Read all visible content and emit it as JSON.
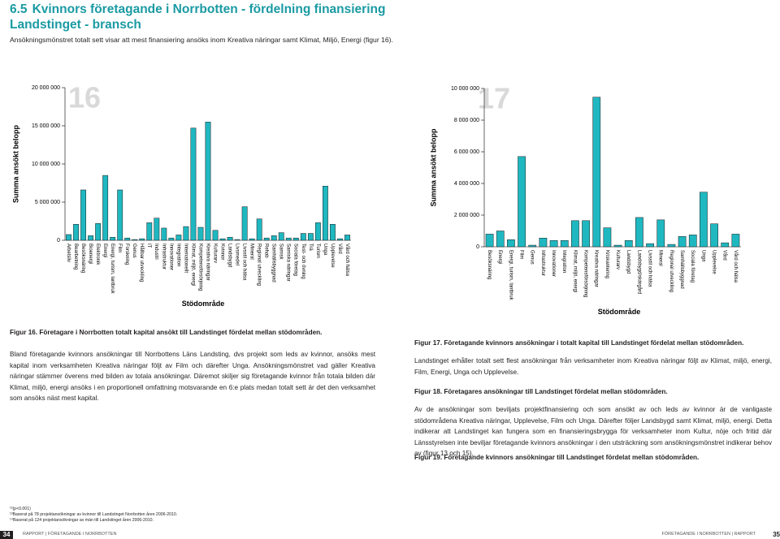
{
  "header": {
    "section": "6.5",
    "title": "Kvinnors företagande i Norrbotten - fördelning finansiering Landstinget - bransch",
    "intro": "Ansökningsmönstret totalt sett visar att mest finansiering ansöks inom Kreativa näringar samt Klimat, Miljö, Energi (figur 16)."
  },
  "chart_data": [
    {
      "type": "bar",
      "figure_number": "16",
      "ylabel": "Summa ansökt belopp",
      "xlabel": "Stödområde",
      "color": "#1fb8c1",
      "categories": [
        "Arbetsliv",
        "Bearbetning",
        "Besöksnäring",
        "Bioenergi",
        "Elektronik",
        "Energi",
        "Energi, turism, lantbruk",
        "Film",
        "Forskning",
        "Genus",
        "Hållbar utveckling",
        "IT",
        "Industri",
        "Infrastruktur",
        "Innovationer",
        "Integration",
        "Internationellt",
        "Klimat, miljö, energi",
        "Kompetensförsörjning",
        "Kreativa näringar",
        "Kulturarv",
        "Kvinnor",
        "Landsbygd",
        "Livsmedel",
        "Livsstil och hälsa",
        "Mineral",
        "Regional utveckling",
        "Rehab",
        "Samhällsbyggnad",
        "Samisk",
        "Samiska näringar",
        "Sociala företag",
        "Test- och övning",
        "Trä",
        "Turism",
        "Unga",
        "Upplevelse",
        "Vård",
        "Vård och hälsa"
      ],
      "values": [
        750000,
        2100000,
        6600000,
        600000,
        2200000,
        8500000,
        400000,
        6600000,
        300000,
        100000,
        200000,
        2300000,
        2900000,
        1600000,
        300000,
        700000,
        1800000,
        14700000,
        1700000,
        15500000,
        1300000,
        200000,
        400000,
        100000,
        4400000,
        200000,
        2800000,
        300000,
        600000,
        1000000,
        300000,
        300000,
        900000,
        900000,
        2300000,
        7100000,
        2100000,
        200000,
        700000
      ],
      "ylim": [
        0,
        20000000
      ],
      "yticks": [
        0,
        {
          "value": 5000000,
          "label": "5 000 000"
        },
        {
          "value": 10000000,
          "label": "10 000 000"
        },
        {
          "value": 15000000,
          "label": "15 000 000"
        },
        {
          "value": 20000000,
          "label": "20 000 000"
        }
      ]
    },
    {
      "type": "bar",
      "figure_number": "17",
      "ylabel": "Summa ansökt belopp",
      "xlabel": "Stödområde",
      "color": "#1fb8c1",
      "categories": [
        "Besöksnäring",
        "Energi",
        "Energi, turism, lantbruk",
        "Film",
        "Genus",
        "Infrastruktur",
        "Innovationer",
        "Integration",
        "Klimat, miljö, energi",
        "Kompetensförsörjning",
        "Kreativa näringar",
        "Kriskantering",
        "Kulturarv",
        "Landsbygd",
        "Landsbygd/skärgård",
        "Livsstil och hälsa",
        "Mineral",
        "Regional utveckling",
        "Samhällsbyggnad",
        "Sociala företag",
        "Unga",
        "Upplevelse",
        "Vård",
        "Vård och hälsa"
      ],
      "values": [
        800000,
        1000000,
        450000,
        5700000,
        100000,
        550000,
        400000,
        400000,
        1650000,
        1650000,
        9450000,
        1200000,
        100000,
        400000,
        1850000,
        200000,
        1700000,
        150000,
        650000,
        750000,
        3450000,
        1450000,
        250000,
        800000
      ],
      "ylim": [
        0,
        10000000
      ],
      "yticks": [
        0,
        {
          "value": 2000000,
          "label": "2 000 000"
        },
        {
          "value": 4000000,
          "label": "4 000 000"
        },
        {
          "value": 6000000,
          "label": "6 000 000"
        },
        {
          "value": 8000000,
          "label": "8 000 000"
        },
        {
          "value": 10000000,
          "label": "10 000 000"
        }
      ]
    }
  ],
  "left_column": {
    "caption": "Figur 16. Företagare i Norrbotten totalt kapital ansökt till Landstinget fördelat mellan stödområden.",
    "paragraph": "Bland företagande kvinnors ansökningar till Norrbottens Läns Landsting, dvs projekt som leds av kvinnor, ansöks mest kapital inom verksamheten Kreativa näringar följt av Film och därefter Unga. Ansökningsmönstret vad gäller Kreativa näringar stämmer överens med bilden av totala ansökningar. Däremot skiljer sig företagande kvinnor från totala bilden där Klimat, miljö, energi ansöks i en proportionell omfattning motsvarande en 6:e plats medan totalt sett är det den verksamhet som ansöks näst mest kapital."
  },
  "right_column": {
    "caption_17": "Figur 17. Företagande kvinnors ansökningar i totalt kapital till Landstinget fördelat mellan stödområden.",
    "paragraph_1": "Landstinget erhåller totalt sett flest ansökningar från verksamheter inom Kreativa näringar följt av Klimat, miljö, energi, Film, Energi, Unga och Upplevelse.",
    "caption_18": "Figur 18. Företagares ansökningar till Landstinget fördelat mellan stödområden.",
    "paragraph_2": "Av de ansökningar som beviljats projektfinansiering och som ansökt av och leds av kvinnor är de vanligaste stödområdena Kreativa näringar, Upplevelse, Film och Unga. Därefter följer Landsbygd samt Klimat, miljö, energi. Detta indikerar att Landstinget kan fungera som en finansieringsbrygga för verksamheter inom Kultur, nöje och fritid där Länsstyrelsen inte beviljar företagande kvinnors ansökningar i den utsträckning som ansökningsmönstret indikerar behov av (figur 13 och 15).",
    "caption_19": "Figur 19. Företagande kvinnors ansökningar till Landstinget fördelat mellan stödområden."
  },
  "footnotes": [
    "¹²(p<0.001)",
    "¹³Baserat på 78 projektansökningar av kvinnor till Landstinget Norrbotten åren 2006-2010.",
    "¹⁴Baserat på 124 projektansökningar av män till Landstinget åren 2006-2010."
  ],
  "footer": {
    "left_page": "34",
    "left_text": "RAPPORT | FÖRETAGANDE I NORRBOTTEN",
    "right_text": "FÖRETAGANDE I NORRBOTTEN | RAPPORT",
    "right_page": "35"
  }
}
